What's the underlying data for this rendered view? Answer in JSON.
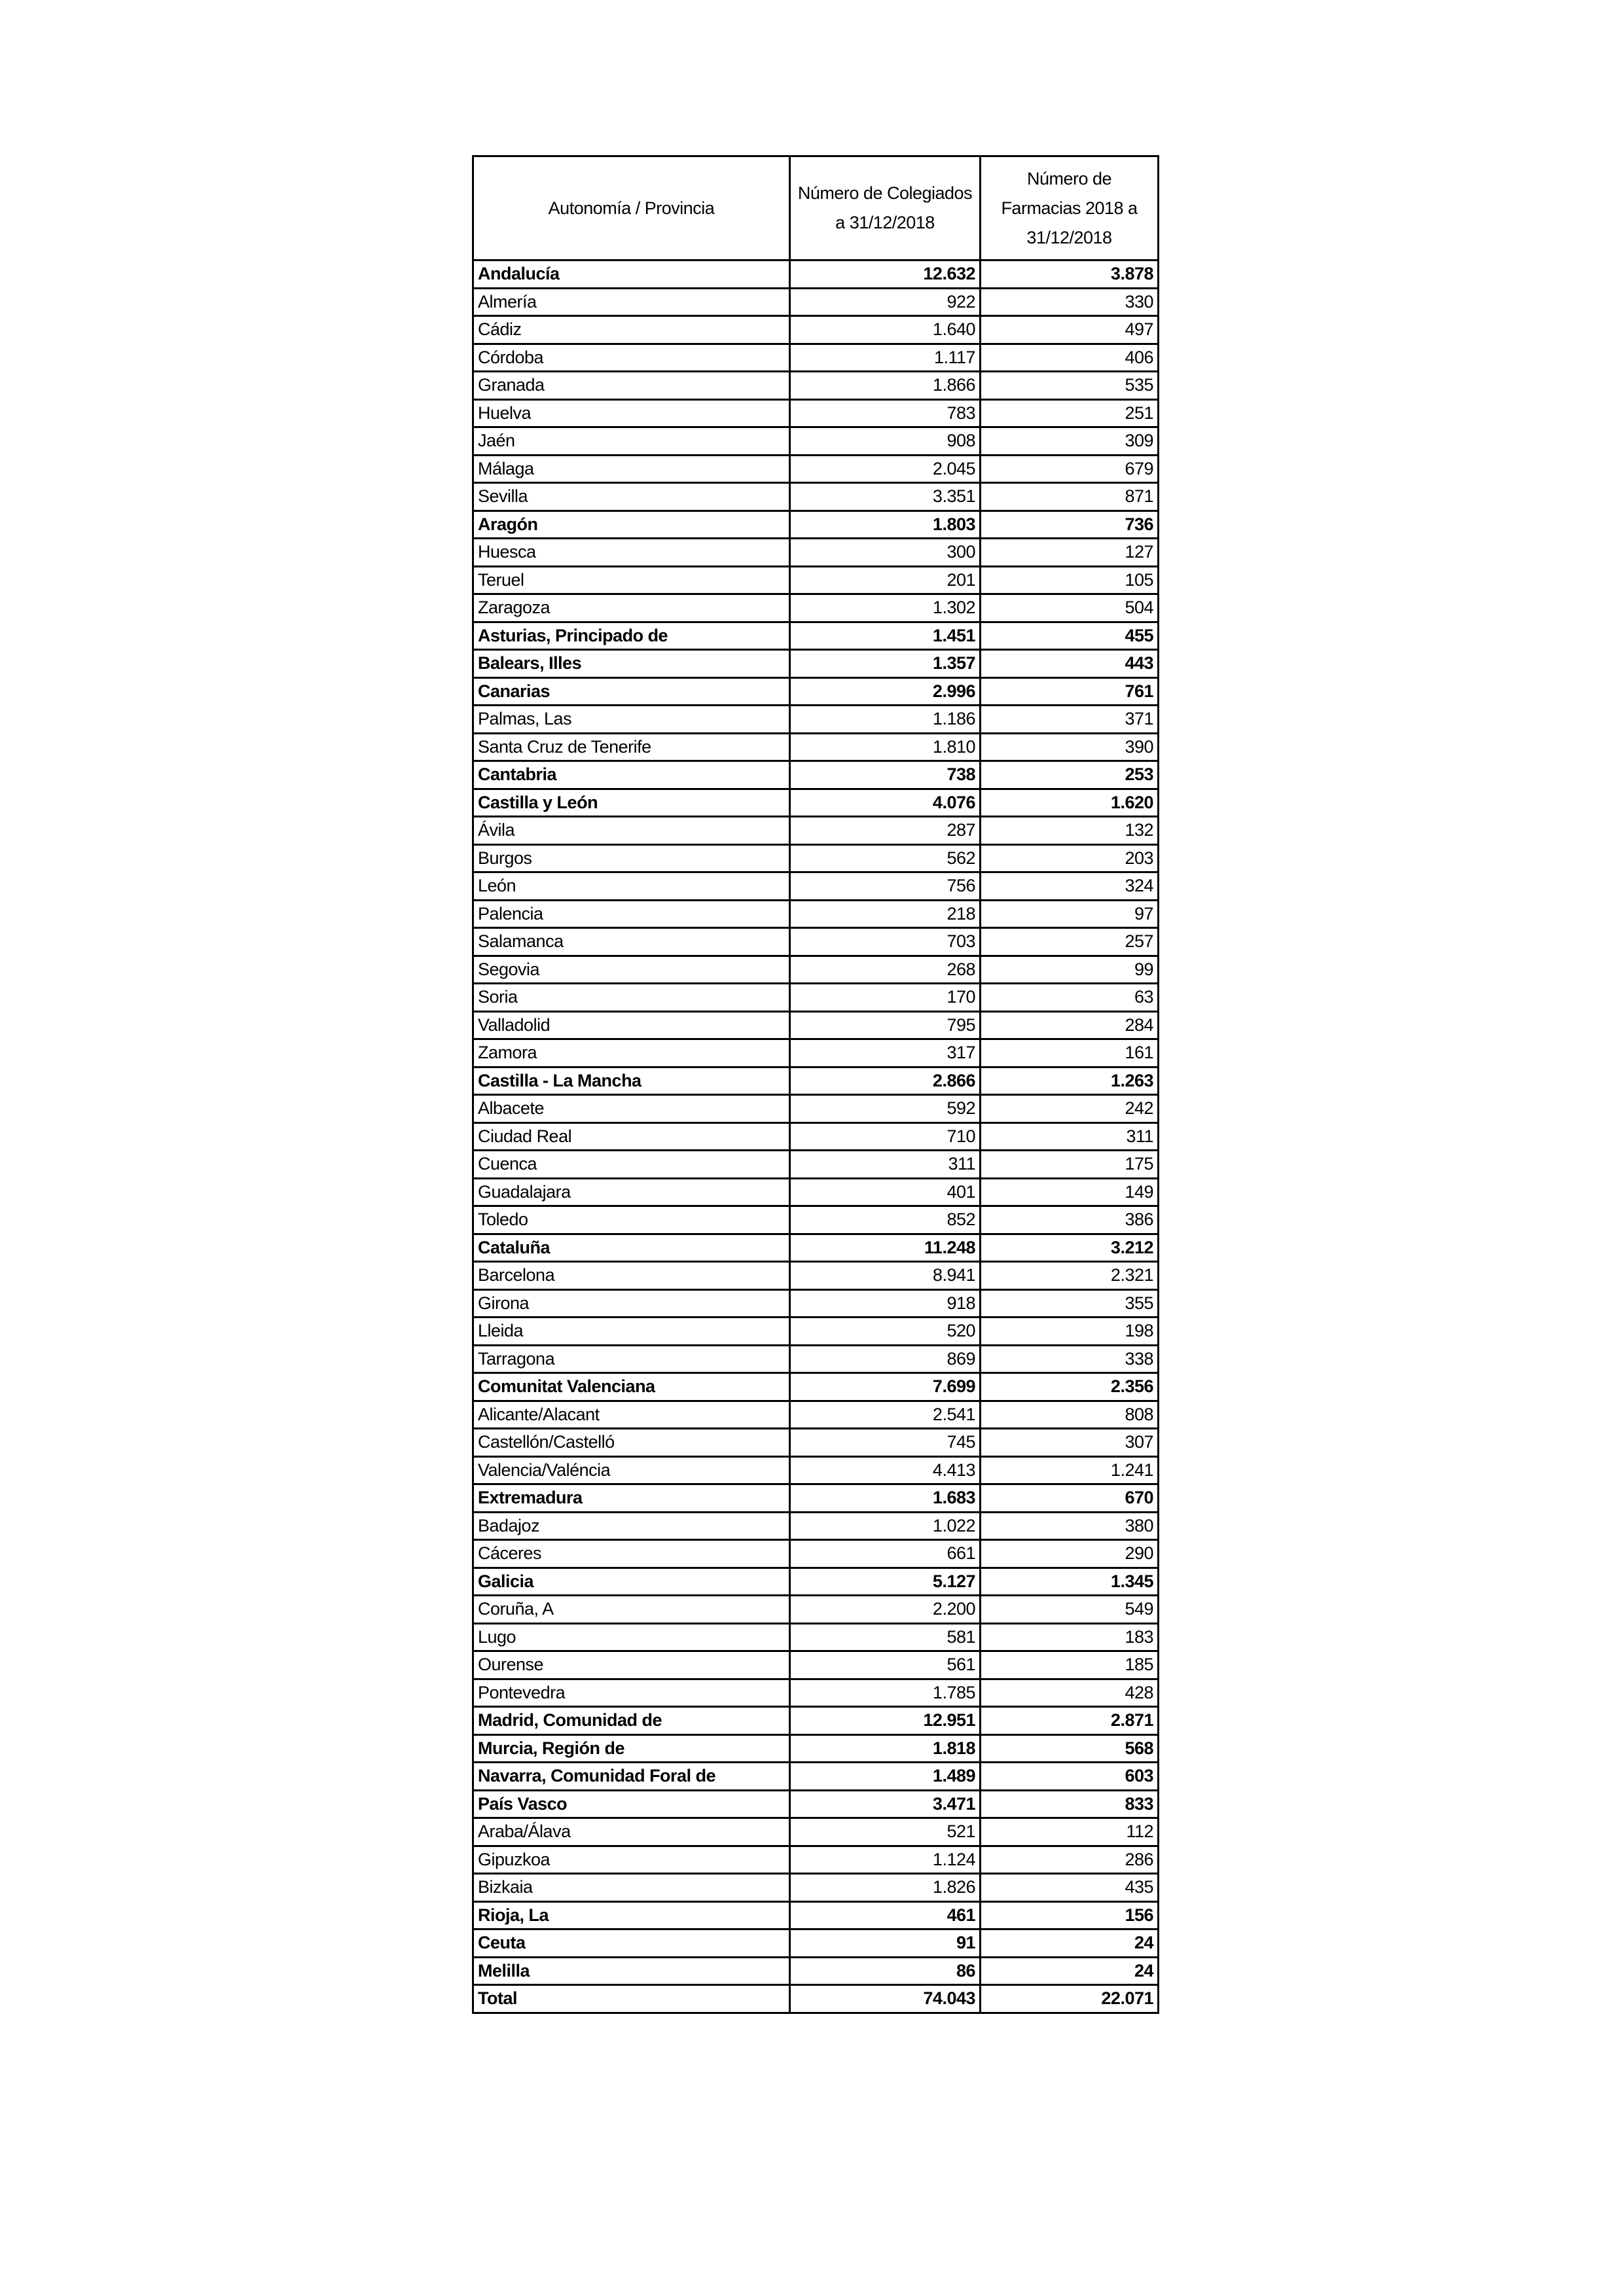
{
  "table": {
    "headers": [
      "Autonomía / Provincia",
      "Número de Colegiados a 31/12/2018",
      "Número de Farmacias 2018 a 31/12/2018"
    ],
    "rows": [
      {
        "name": "Andalucía",
        "colegiados": "12.632",
        "farmacias": "3.878",
        "bold": true
      },
      {
        "name": "Almería",
        "colegiados": "922",
        "farmacias": "330"
      },
      {
        "name": "Cádiz",
        "colegiados": "1.640",
        "farmacias": "497"
      },
      {
        "name": "Córdoba",
        "colegiados": "1.117",
        "farmacias": "406"
      },
      {
        "name": "Granada",
        "colegiados": "1.866",
        "farmacias": "535"
      },
      {
        "name": "Huelva",
        "colegiados": "783",
        "farmacias": "251"
      },
      {
        "name": "Jaén",
        "colegiados": "908",
        "farmacias": "309"
      },
      {
        "name": "Málaga",
        "colegiados": "2.045",
        "farmacias": "679"
      },
      {
        "name": "Sevilla",
        "colegiados": "3.351",
        "farmacias": "871"
      },
      {
        "name": "Aragón",
        "colegiados": "1.803",
        "farmacias": "736",
        "bold": true
      },
      {
        "name": "Huesca",
        "colegiados": "300",
        "farmacias": "127"
      },
      {
        "name": "Teruel",
        "colegiados": "201",
        "farmacias": "105"
      },
      {
        "name": "Zaragoza",
        "colegiados": "1.302",
        "farmacias": "504"
      },
      {
        "name": "Asturias, Principado de",
        "colegiados": "1.451",
        "farmacias": "455",
        "bold": true
      },
      {
        "name": "Balears, Illes",
        "colegiados": "1.357",
        "farmacias": "443",
        "bold": true
      },
      {
        "name": "Canarias",
        "colegiados": "2.996",
        "farmacias": "761",
        "bold": true
      },
      {
        "name": "Palmas, Las",
        "colegiados": "1.186",
        "farmacias": "371"
      },
      {
        "name": "Santa Cruz de Tenerife",
        "colegiados": "1.810",
        "farmacias": "390"
      },
      {
        "name": "Cantabria",
        "colegiados": "738",
        "farmacias": "253",
        "bold": true
      },
      {
        "name": "Castilla y León",
        "colegiados": "4.076",
        "farmacias": "1.620",
        "bold": true
      },
      {
        "name": "Ávila",
        "colegiados": "287",
        "farmacias": "132"
      },
      {
        "name": "Burgos",
        "colegiados": "562",
        "farmacias": "203"
      },
      {
        "name": "León",
        "colegiados": "756",
        "farmacias": "324"
      },
      {
        "name": "Palencia",
        "colegiados": "218",
        "farmacias": "97"
      },
      {
        "name": "Salamanca",
        "colegiados": "703",
        "farmacias": "257"
      },
      {
        "name": "Segovia",
        "colegiados": "268",
        "farmacias": "99"
      },
      {
        "name": "Soria",
        "colegiados": "170",
        "farmacias": "63"
      },
      {
        "name": "Valladolid",
        "colegiados": "795",
        "farmacias": "284"
      },
      {
        "name": "Zamora",
        "colegiados": "317",
        "farmacias": "161"
      },
      {
        "name": "Castilla - La Mancha",
        "colegiados": "2.866",
        "farmacias": "1.263",
        "bold": true
      },
      {
        "name": "Albacete",
        "colegiados": "592",
        "farmacias": "242"
      },
      {
        "name": "Ciudad Real",
        "colegiados": "710",
        "farmacias": "311"
      },
      {
        "name": "Cuenca",
        "colegiados": "311",
        "farmacias": "175"
      },
      {
        "name": "Guadalajara",
        "colegiados": "401",
        "farmacias": "149"
      },
      {
        "name": "Toledo",
        "colegiados": "852",
        "farmacias": "386"
      },
      {
        "name": "Cataluña",
        "colegiados": "11.248",
        "farmacias": "3.212",
        "bold": true
      },
      {
        "name": "Barcelona",
        "colegiados": "8.941",
        "farmacias": "2.321"
      },
      {
        "name": "Girona",
        "colegiados": "918",
        "farmacias": "355"
      },
      {
        "name": "Lleida",
        "colegiados": "520",
        "farmacias": "198"
      },
      {
        "name": "Tarragona",
        "colegiados": "869",
        "farmacias": "338"
      },
      {
        "name": "Comunitat Valenciana",
        "colegiados": "7.699",
        "farmacias": "2.356",
        "bold": true
      },
      {
        "name": "Alicante/Alacant",
        "colegiados": "2.541",
        "farmacias": "808"
      },
      {
        "name": "Castellón/Castelló",
        "colegiados": "745",
        "farmacias": "307"
      },
      {
        "name": "Valencia/Valéncia",
        "colegiados": "4.413",
        "farmacias": "1.241"
      },
      {
        "name": "Extremadura",
        "colegiados": "1.683",
        "farmacias": "670",
        "bold": true
      },
      {
        "name": "Badajoz",
        "colegiados": "1.022",
        "farmacias": "380"
      },
      {
        "name": "Cáceres",
        "colegiados": "661",
        "farmacias": "290"
      },
      {
        "name": "Galicia",
        "colegiados": "5.127",
        "farmacias": "1.345",
        "bold": true
      },
      {
        "name": "Coruña, A",
        "colegiados": "2.200",
        "farmacias": "549"
      },
      {
        "name": "Lugo",
        "colegiados": "581",
        "farmacias": "183"
      },
      {
        "name": "Ourense",
        "colegiados": "561",
        "farmacias": "185"
      },
      {
        "name": "Pontevedra",
        "colegiados": "1.785",
        "farmacias": "428"
      },
      {
        "name": "Madrid, Comunidad de",
        "colegiados": "12.951",
        "farmacias": "2.871",
        "bold": true
      },
      {
        "name": "Murcia, Región de",
        "colegiados": "1.818",
        "farmacias": "568",
        "bold": true
      },
      {
        "name": "Navarra, Comunidad Foral de",
        "colegiados": "1.489",
        "farmacias": "603",
        "bold": true
      },
      {
        "name": "País Vasco",
        "colegiados": "3.471",
        "farmacias": "833",
        "bold": true
      },
      {
        "name": "Araba/Álava",
        "colegiados": "521",
        "farmacias": "112"
      },
      {
        "name": "Gipuzkoa",
        "colegiados": "1.124",
        "farmacias": "286"
      },
      {
        "name": "Bizkaia",
        "colegiados": "1.826",
        "farmacias": "435"
      },
      {
        "name": "Rioja, La",
        "colegiados": "461",
        "farmacias": "156",
        "bold": true
      },
      {
        "name": "Ceuta",
        "colegiados": "91",
        "farmacias": "24",
        "bold": true
      },
      {
        "name": "Melilla",
        "colegiados": "86",
        "farmacias": "24",
        "bold": true
      },
      {
        "name": "Total",
        "colegiados": "74.043",
        "farmacias": "22.071",
        "bold": true
      }
    ]
  }
}
